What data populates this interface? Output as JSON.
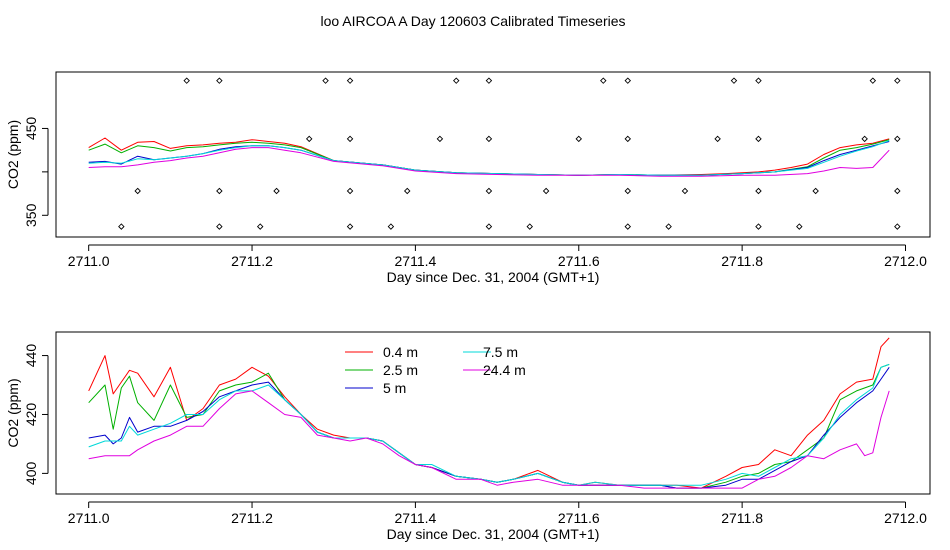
{
  "title": "loo AIRCOA A  Day 120603  Calibrated Timeseries",
  "colors": {
    "0.4 m": "#ff0000",
    "2.5 m": "#00b000",
    "5 m": "#0000cc",
    "7.5 m": "#00d8d8",
    "24.4 m": "#e000e0"
  },
  "chart_data": [
    {
      "type": "line",
      "xlabel": "Day since Dec. 31, 2004 (GMT+1)",
      "ylabel": "CO2 (ppm)",
      "xlim": [
        2710.96,
        2712.03
      ],
      "ylim": [
        325,
        515
      ],
      "xticks": [
        "2711.0",
        "2711.2",
        "2711.4",
        "2711.6",
        "2711.8",
        "2712.0"
      ],
      "yticks": [
        "350",
        "",
        "450"
      ],
      "ytick_values": [
        350,
        400,
        450
      ],
      "series": [
        {
          "name": "0.4 m",
          "color": "#ff0000",
          "x": [
            2711.0,
            2711.02,
            2711.04,
            2711.06,
            2711.08,
            2711.1,
            2711.12,
            2711.14,
            2711.16,
            2711.18,
            2711.2,
            2711.22,
            2711.24,
            2711.26,
            2711.3,
            2711.36,
            2711.4,
            2711.45,
            2711.5,
            2711.55,
            2711.6,
            2711.65,
            2711.7,
            2711.75,
            2711.78,
            2711.8,
            2711.82,
            2711.84,
            2711.86,
            2711.88,
            2711.9,
            2711.92,
            2711.94,
            2711.96,
            2711.98
          ],
          "values": [
            428,
            439,
            425,
            434,
            435,
            427,
            430,
            431,
            433,
            434,
            437,
            435,
            433,
            429,
            413,
            408,
            402,
            399,
            398,
            397,
            396,
            397,
            396,
            397,
            398,
            399,
            400,
            402,
            405,
            409,
            420,
            428,
            431,
            433,
            438
          ]
        },
        {
          "name": "2.5 m",
          "color": "#00b000",
          "x": [
            2711.0,
            2711.02,
            2711.04,
            2711.06,
            2711.08,
            2711.1,
            2711.12,
            2711.14,
            2711.16,
            2711.18,
            2711.2,
            2711.22,
            2711.24,
            2711.26,
            2711.3,
            2711.36,
            2711.4,
            2711.45,
            2711.5,
            2711.55,
            2711.6,
            2711.65,
            2711.7,
            2711.75,
            2711.8,
            2711.84,
            2711.88,
            2711.9,
            2711.92,
            2711.94,
            2711.96,
            2711.98
          ],
          "values": [
            425,
            432,
            422,
            430,
            428,
            424,
            428,
            429,
            431,
            433,
            434,
            433,
            431,
            428,
            413,
            408,
            402,
            399,
            398,
            397,
            396,
            397,
            396,
            396,
            398,
            400,
            406,
            416,
            425,
            428,
            432,
            437
          ]
        },
        {
          "name": "5 m",
          "color": "#0000cc",
          "x": [
            2711.0,
            2711.02,
            2711.04,
            2711.06,
            2711.08,
            2711.1,
            2711.12,
            2711.14,
            2711.16,
            2711.18,
            2711.2,
            2711.22,
            2711.24,
            2711.26,
            2711.3,
            2711.36,
            2711.4,
            2711.45,
            2711.5,
            2711.55,
            2711.6,
            2711.65,
            2711.7,
            2711.75,
            2711.8,
            2711.84,
            2711.88,
            2711.9,
            2711.92,
            2711.94,
            2711.96,
            2711.98
          ],
          "values": [
            411,
            412,
            409,
            418,
            414,
            416,
            418,
            421,
            426,
            429,
            430,
            430,
            428,
            425,
            413,
            408,
            402,
            399,
            398,
            397,
            396,
            397,
            396,
            396,
            398,
            400,
            405,
            413,
            420,
            425,
            430,
            435
          ]
        },
        {
          "name": "7.5 m",
          "color": "#00d8d8",
          "x": [
            2711.0,
            2711.02,
            2711.04,
            2711.06,
            2711.08,
            2711.1,
            2711.12,
            2711.14,
            2711.16,
            2711.18,
            2711.2,
            2711.22,
            2711.24,
            2711.26,
            2711.3,
            2711.36,
            2711.4,
            2711.45,
            2711.5,
            2711.55,
            2711.6,
            2711.65,
            2711.7,
            2711.75,
            2711.8,
            2711.84,
            2711.88,
            2711.9,
            2711.92,
            2711.94,
            2711.96,
            2711.98
          ],
          "values": [
            410,
            411,
            410,
            415,
            414,
            416,
            418,
            421,
            425,
            428,
            430,
            430,
            428,
            425,
            413,
            408,
            402,
            399,
            398,
            397,
            396,
            397,
            396,
            396,
            398,
            400,
            404,
            411,
            418,
            424,
            429,
            436
          ]
        },
        {
          "name": "24.4 m",
          "color": "#e000e0",
          "x": [
            2711.0,
            2711.02,
            2711.04,
            2711.06,
            2711.08,
            2711.1,
            2711.12,
            2711.14,
            2711.16,
            2711.18,
            2711.2,
            2711.22,
            2711.24,
            2711.26,
            2711.3,
            2711.36,
            2711.4,
            2711.45,
            2711.5,
            2711.55,
            2711.6,
            2711.65,
            2711.7,
            2711.75,
            2711.8,
            2711.84,
            2711.88,
            2711.9,
            2711.92,
            2711.94,
            2711.96,
            2711.98
          ],
          "values": [
            405,
            406,
            406,
            408,
            411,
            413,
            416,
            418,
            422,
            426,
            428,
            428,
            425,
            422,
            412,
            407,
            401,
            398,
            397,
            396,
            396,
            396,
            395,
            395,
            396,
            396,
            398,
            401,
            405,
            404,
            405,
            425
          ]
        }
      ],
      "calibration_points": {
        "x": [
          2711.12,
          2711.16,
          2711.29,
          2711.32,
          2711.45,
          2711.49,
          2711.63,
          2711.66,
          2711.79,
          2711.82,
          2711.96,
          2711.99,
          2711.27,
          2711.32,
          2711.43,
          2711.49,
          2711.6,
          2711.66,
          2711.77,
          2711.82,
          2711.95,
          2711.99,
          2711.06,
          2711.16,
          2711.23,
          2711.32,
          2711.39,
          2711.49,
          2711.56,
          2711.66,
          2711.73,
          2711.82,
          2711.89,
          2711.99,
          2711.04,
          2711.16,
          2711.21,
          2711.32,
          2711.37,
          2711.49,
          2711.54,
          2711.66,
          2711.71,
          2711.82,
          2711.87,
          2711.99
        ],
        "values": [
          505,
          505,
          505,
          505,
          505,
          505,
          505,
          505,
          505,
          505,
          505,
          505,
          438,
          438,
          438,
          438,
          438,
          438,
          438,
          438,
          438,
          438,
          378,
          378,
          378,
          378,
          378,
          378,
          378,
          378,
          378,
          378,
          378,
          378,
          337,
          337,
          337,
          337,
          337,
          337,
          337,
          337,
          337,
          337,
          337,
          337
        ]
      }
    },
    {
      "type": "line",
      "xlabel": "Day since Dec. 31, 2004 (GMT+1)",
      "ylabel": "CO2 (ppm)",
      "xlim": [
        2710.96,
        2712.03
      ],
      "ylim": [
        393,
        448
      ],
      "xticks": [
        "2711.0",
        "2711.2",
        "2711.4",
        "2711.6",
        "2711.8",
        "2712.0"
      ],
      "yticks": [
        "400",
        "420",
        "440"
      ],
      "ytick_values": [
        400,
        420,
        440
      ],
      "legend": {
        "position": "top-center",
        "entries": [
          "0.4 m",
          "2.5 m",
          "5 m",
          "7.5 m",
          "24.4 m"
        ]
      },
      "series": [
        {
          "name": "0.4 m",
          "color": "#ff0000",
          "x": [
            2711.0,
            2711.02,
            2711.03,
            2711.04,
            2711.05,
            2711.06,
            2711.08,
            2711.1,
            2711.12,
            2711.14,
            2711.16,
            2711.18,
            2711.2,
            2711.22,
            2711.24,
            2711.26,
            2711.28,
            2711.3,
            2711.32,
            2711.34,
            2711.36,
            2711.38,
            2711.4,
            2711.42,
            2711.45,
            2711.48,
            2711.5,
            2711.52,
            2711.55,
            2711.58,
            2711.6,
            2711.62,
            2711.65,
            2711.68,
            2711.7,
            2711.72,
            2711.75,
            2711.78,
            2711.8,
            2711.82,
            2711.84,
            2711.86,
            2711.88,
            2711.9,
            2711.92,
            2711.94,
            2711.96,
            2711.97,
            2711.98
          ],
          "values": [
            428,
            440,
            427,
            431,
            435,
            434,
            426,
            436,
            418,
            422,
            430,
            432,
            436,
            433,
            426,
            420,
            415,
            413,
            412,
            412,
            411,
            407,
            403,
            402,
            399,
            398,
            397,
            398,
            401,
            397,
            396,
            397,
            396,
            396,
            396,
            396,
            395,
            399,
            402,
            403,
            408,
            406,
            413,
            418,
            427,
            431,
            432,
            443,
            446
          ]
        },
        {
          "name": "2.5 m",
          "color": "#00b000",
          "x": [
            2711.0,
            2711.02,
            2711.03,
            2711.04,
            2711.05,
            2711.06,
            2711.08,
            2711.1,
            2711.12,
            2711.14,
            2711.16,
            2711.18,
            2711.2,
            2711.22,
            2711.24,
            2711.26,
            2711.28,
            2711.3,
            2711.32,
            2711.34,
            2711.36,
            2711.38,
            2711.4,
            2711.42,
            2711.45,
            2711.48,
            2711.5,
            2711.52,
            2711.55,
            2711.58,
            2711.6,
            2711.62,
            2711.65,
            2711.68,
            2711.7,
            2711.72,
            2711.75,
            2711.78,
            2711.8,
            2711.82,
            2711.84,
            2711.86,
            2711.88,
            2711.9,
            2711.92,
            2711.94,
            2711.96,
            2711.97,
            2711.98
          ],
          "values": [
            424,
            430,
            415,
            429,
            433,
            424,
            418,
            430,
            419,
            420,
            428,
            430,
            431,
            434,
            425,
            420,
            414,
            412,
            412,
            412,
            411,
            407,
            403,
            402,
            399,
            398,
            397,
            398,
            400,
            397,
            396,
            396,
            396,
            396,
            396,
            395,
            395,
            397,
            399,
            400,
            403,
            404,
            408,
            412,
            425,
            428,
            430,
            436,
            437
          ]
        },
        {
          "name": "5 m",
          "color": "#0000cc",
          "x": [
            2711.0,
            2711.02,
            2711.03,
            2711.04,
            2711.05,
            2711.06,
            2711.08,
            2711.1,
            2711.12,
            2711.14,
            2711.16,
            2711.18,
            2711.2,
            2711.22,
            2711.24,
            2711.26,
            2711.28,
            2711.3,
            2711.32,
            2711.34,
            2711.36,
            2711.38,
            2711.4,
            2711.42,
            2711.45,
            2711.48,
            2711.5,
            2711.52,
            2711.55,
            2711.58,
            2711.6,
            2711.62,
            2711.65,
            2711.68,
            2711.7,
            2711.72,
            2711.75,
            2711.78,
            2711.8,
            2711.82,
            2711.84,
            2711.86,
            2711.88,
            2711.9,
            2711.92,
            2711.94,
            2711.96,
            2711.97,
            2711.98
          ],
          "values": [
            412,
            413,
            410,
            412,
            419,
            414,
            416,
            416,
            418,
            421,
            426,
            428,
            430,
            431,
            425,
            420,
            414,
            412,
            412,
            412,
            411,
            407,
            403,
            402,
            399,
            398,
            397,
            398,
            400,
            397,
            396,
            396,
            396,
            396,
            396,
            395,
            395,
            396,
            398,
            398,
            401,
            404,
            406,
            413,
            419,
            424,
            428,
            432,
            436
          ]
        },
        {
          "name": "7.5 m",
          "color": "#00d8d8",
          "x": [
            2711.0,
            2711.02,
            2711.03,
            2711.04,
            2711.05,
            2711.06,
            2711.08,
            2711.1,
            2711.12,
            2711.14,
            2711.16,
            2711.18,
            2711.2,
            2711.22,
            2711.24,
            2711.26,
            2711.28,
            2711.3,
            2711.32,
            2711.34,
            2711.36,
            2711.38,
            2711.4,
            2711.42,
            2711.45,
            2711.48,
            2711.5,
            2711.52,
            2711.55,
            2711.58,
            2711.6,
            2711.62,
            2711.65,
            2711.68,
            2711.7,
            2711.72,
            2711.75,
            2711.78,
            2711.8,
            2711.82,
            2711.84,
            2711.86,
            2711.88,
            2711.9,
            2711.92,
            2711.94,
            2711.96,
            2711.97,
            2711.98
          ],
          "values": [
            409,
            411,
            411,
            411,
            416,
            413,
            415,
            417,
            420,
            420,
            425,
            428,
            428,
            430,
            425,
            420,
            414,
            412,
            412,
            412,
            411,
            407,
            403,
            403,
            399,
            398,
            397,
            398,
            400,
            397,
            396,
            397,
            396,
            396,
            396,
            396,
            396,
            398,
            400,
            399,
            402,
            405,
            406,
            412,
            420,
            425,
            429,
            436,
            437
          ]
        },
        {
          "name": "24.4 m",
          "color": "#e000e0",
          "x": [
            2711.0,
            2711.02,
            2711.03,
            2711.04,
            2711.05,
            2711.06,
            2711.08,
            2711.1,
            2711.12,
            2711.14,
            2711.16,
            2711.18,
            2711.2,
            2711.22,
            2711.24,
            2711.26,
            2711.28,
            2711.3,
            2711.32,
            2711.34,
            2711.36,
            2711.38,
            2711.4,
            2711.42,
            2711.45,
            2711.48,
            2711.5,
            2711.52,
            2711.55,
            2711.58,
            2711.6,
            2711.62,
            2711.65,
            2711.68,
            2711.7,
            2711.72,
            2711.75,
            2711.78,
            2711.8,
            2711.82,
            2711.84,
            2711.86,
            2711.88,
            2711.9,
            2711.92,
            2711.94,
            2711.95,
            2711.96,
            2711.97,
            2711.98
          ],
          "values": [
            405,
            406,
            406,
            406,
            406,
            408,
            411,
            413,
            416,
            416,
            422,
            427,
            428,
            424,
            420,
            419,
            413,
            412,
            411,
            412,
            410,
            406,
            403,
            402,
            398,
            398,
            396,
            397,
            398,
            396,
            396,
            396,
            396,
            395,
            395,
            395,
            395,
            395,
            395,
            398,
            399,
            402,
            406,
            405,
            408,
            410,
            406,
            407,
            419,
            428
          ]
        }
      ]
    }
  ]
}
